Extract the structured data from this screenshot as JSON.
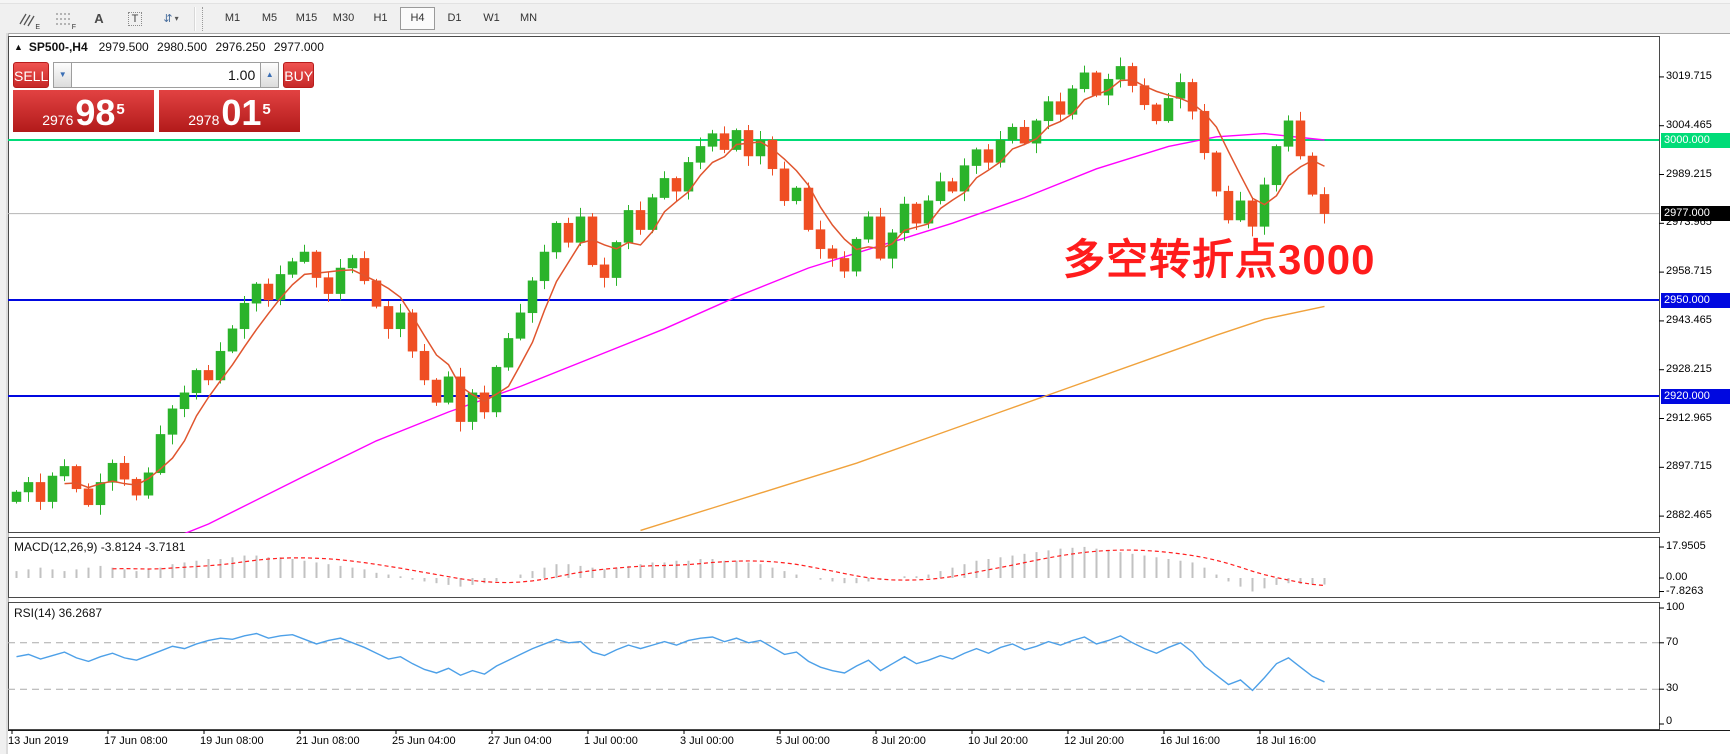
{
  "toolbar": {
    "icons": [
      {
        "name": "elliott-wave-icon",
        "label": "E"
      },
      {
        "name": "fibonacci-icon",
        "label": "F"
      },
      {
        "name": "text-icon",
        "label": "A"
      },
      {
        "name": "text-label-icon",
        "label": "T"
      },
      {
        "name": "arrow-tools-icon",
        "label": "⇵"
      }
    ],
    "dropdown_caret": "▾",
    "timeframes": [
      {
        "label": "M1",
        "active": false
      },
      {
        "label": "M5",
        "active": false
      },
      {
        "label": "M15",
        "active": false
      },
      {
        "label": "M30",
        "active": false
      },
      {
        "label": "H1",
        "active": false
      },
      {
        "label": "H4",
        "active": true
      },
      {
        "label": "D1",
        "active": false
      },
      {
        "label": "W1",
        "active": false
      },
      {
        "label": "MN",
        "active": false
      }
    ]
  },
  "header": {
    "collapse_icon": "▲",
    "symbol": "SP500-,H4",
    "open": "2979.500",
    "high": "2980.500",
    "low": "2976.250",
    "close": "2977.000"
  },
  "trade_panel": {
    "sell_label": "SELL",
    "buy_label": "BUY",
    "volume": "1.00",
    "spin_down": "▼",
    "spin_up": "▲",
    "sell_price": {
      "small": "2976",
      "big": "98",
      "sup": "5"
    },
    "buy_price": {
      "small": "2978",
      "big": "01",
      "sup": "5"
    }
  },
  "annotation": {
    "text": "多空转折点3000",
    "color": "#ff1c1c"
  },
  "indicator_labels": {
    "macd": "MACD(12,26,9) -3.8124 -3.7181",
    "rsi": "RSI(14) 36.2687"
  },
  "chart_data": {
    "type": "candlestick",
    "symbol": "SP500-",
    "timeframe": "H4",
    "colors": {
      "bull": "#2bb32b",
      "bear": "#ef4e23",
      "ma_fast": "#e0552e",
      "ma_mid": "#ff00ff",
      "ma_slow": "#f0a23c",
      "macd_hist": "#c2c2c2",
      "macd_signal": "#ff2020",
      "rsi_line": "#4da0e8",
      "level_green": "#00dc78",
      "level_blue": "#0008e0",
      "current_price_line": "#b4b4b4"
    },
    "first_open": 2887,
    "closes": [
      2890,
      2893,
      2887,
      2895,
      2898,
      2891,
      2886,
      2893,
      2899,
      2894,
      2889,
      2896,
      2908,
      2916,
      2921,
      2928,
      2925,
      2934,
      2941,
      2949,
      2955,
      2950,
      2958,
      2962,
      2965,
      2957,
      2952,
      2960,
      2963,
      2956,
      2948,
      2941,
      2946,
      2934,
      2925,
      2918,
      2926,
      2912,
      2921,
      2915,
      2929,
      2938,
      2946,
      2956,
      2965,
      2974,
      2968,
      2976,
      2961,
      2957,
      2968,
      2978,
      2972,
      2982,
      2988,
      2984,
      2993,
      2998,
      3002,
      2997,
      3003,
      2995,
      3000,
      2991,
      2981,
      2985,
      2972,
      2966,
      2963,
      2959,
      2969,
      2976,
      2963,
      2971,
      2980,
      2974,
      2981,
      2987,
      2984,
      2992,
      2997,
      2993,
      3000,
      3004,
      2999,
      3006,
      3012,
      3008,
      3016,
      3021,
      3014,
      3019,
      3023,
      3017,
      3011,
      3006,
      3013,
      3018,
      3009,
      2996,
      2984,
      2975,
      2981,
      2973,
      2986,
      2998,
      3006,
      2995,
      2983,
      2977
    ],
    "ma_mid_points": [
      [
        0,
        2862
      ],
      [
        8,
        2868
      ],
      [
        16,
        2880
      ],
      [
        24,
        2895
      ],
      [
        30,
        2906
      ],
      [
        36,
        2915
      ],
      [
        42,
        2923
      ],
      [
        48,
        2932
      ],
      [
        54,
        2941
      ],
      [
        60,
        2951
      ],
      [
        66,
        2960
      ],
      [
        72,
        2967
      ],
      [
        78,
        2974
      ],
      [
        84,
        2982
      ],
      [
        90,
        2991
      ],
      [
        96,
        2998
      ],
      [
        100,
        3001
      ],
      [
        104,
        3002
      ],
      [
        109,
        3000
      ]
    ],
    "ma_slow_points": [
      [
        52,
        2878
      ],
      [
        58,
        2885
      ],
      [
        64,
        2892
      ],
      [
        70,
        2899
      ],
      [
        76,
        2907
      ],
      [
        82,
        2915
      ],
      [
        88,
        2923
      ],
      [
        94,
        2931
      ],
      [
        100,
        2939
      ],
      [
        104,
        2944
      ],
      [
        109,
        2948
      ]
    ],
    "levels": [
      {
        "price": 3000,
        "color": "#00dc78",
        "width": 2
      },
      {
        "price": 2950,
        "color": "#0008e0",
        "width": 2
      },
      {
        "price": 2920,
        "color": "#0008e0",
        "width": 2
      },
      {
        "price": 2977,
        "color": "#b4b4b4",
        "width": 1
      }
    ],
    "price_scale": [
      {
        "label": "3019.715",
        "price": 3019.715
      },
      {
        "label": "3004.465",
        "price": 3004.465
      },
      {
        "label": "3000.000",
        "price": 3000.0,
        "badge": "green"
      },
      {
        "label": "2989.215",
        "price": 2989.215
      },
      {
        "label": "2977.000",
        "price": 2977.0,
        "badge": "black"
      },
      {
        "label": "2973.965",
        "price": 2973.965
      },
      {
        "label": "2958.715",
        "price": 2958.715
      },
      {
        "label": "2950.000",
        "price": 2950.0,
        "badge": "blue"
      },
      {
        "label": "2943.465",
        "price": 2943.465
      },
      {
        "label": "2928.215",
        "price": 2928.215
      },
      {
        "label": "2920.000",
        "price": 2920.0,
        "badge": "blue"
      },
      {
        "label": "2912.965",
        "price": 2912.965
      },
      {
        "label": "2897.715",
        "price": 2897.715
      },
      {
        "label": "2882.465",
        "price": 2882.465
      }
    ],
    "macd": {
      "histogram": [
        4,
        5,
        6,
        5,
        4,
        5,
        6,
        7,
        6,
        5,
        4,
        5,
        6,
        8,
        9,
        10,
        11,
        11,
        12,
        13,
        13,
        12,
        12,
        11,
        10,
        9,
        8,
        7,
        6,
        5,
        3,
        2,
        1,
        -1,
        -2,
        -3,
        -4,
        -5,
        -4,
        -3,
        -2,
        0,
        2,
        4,
        6,
        8,
        8,
        7,
        6,
        5,
        6,
        7,
        8,
        9,
        9,
        10,
        10,
        11,
        11,
        10,
        10,
        9,
        8,
        6,
        4,
        2,
        0,
        -1,
        -2,
        -3,
        -3,
        -2,
        -1,
        0,
        1,
        1,
        2,
        4,
        6,
        8,
        10,
        11,
        12,
        13,
        14,
        15,
        16,
        17,
        17.5,
        18,
        17,
        16,
        15,
        14,
        13,
        12,
        11,
        10,
        9,
        6,
        2,
        -2,
        -5,
        -7.8,
        -6,
        -4,
        -3,
        -3.5,
        -4,
        -3.81
      ],
      "scale": [
        {
          "label": "17.9505",
          "value": 17.9505
        },
        {
          "label": "0.00",
          "value": 0
        },
        {
          "label": "-7.8263",
          "value": -7.8263
        }
      ]
    },
    "rsi": {
      "values": [
        58,
        60,
        56,
        59,
        62,
        57,
        54,
        58,
        61,
        57,
        55,
        59,
        63,
        67,
        65,
        69,
        72,
        74,
        73,
        76,
        78,
        74,
        76,
        77,
        73,
        69,
        72,
        74,
        70,
        66,
        61,
        56,
        58,
        52,
        47,
        44,
        48,
        42,
        46,
        43,
        50,
        55,
        60,
        65,
        69,
        73,
        70,
        71,
        62,
        59,
        64,
        68,
        65,
        68,
        71,
        68,
        72,
        74,
        75,
        71,
        74,
        70,
        72,
        66,
        60,
        62,
        54,
        49,
        46,
        44,
        50,
        55,
        46,
        52,
        58,
        52,
        55,
        59,
        56,
        61,
        65,
        61,
        66,
        69,
        64,
        67,
        71,
        68,
        72,
        75,
        69,
        72,
        76,
        70,
        65,
        61,
        66,
        70,
        62,
        50,
        42,
        34,
        38,
        29,
        40,
        52,
        57,
        49,
        41,
        36.27
      ],
      "scale": [
        {
          "label": "100",
          "value": 100
        },
        {
          "label": "70",
          "value": 70,
          "dashed": true
        },
        {
          "label": "30",
          "value": 30,
          "dashed": true
        },
        {
          "label": "0",
          "value": 0
        }
      ]
    },
    "time_axis": [
      "13 Jun 2019",
      "17 Jun 08:00",
      "19 Jun 08:00",
      "21 Jun 08:00",
      "25 Jun 04:00",
      "27 Jun 04:00",
      "1 Jul 00:00",
      "3 Jul 00:00",
      "5 Jul 00:00",
      "8 Jul 20:00",
      "10 Jul 20:00",
      "12 Jul 20:00",
      "16 Jul 16:00",
      "18 Jul 16:00"
    ]
  }
}
